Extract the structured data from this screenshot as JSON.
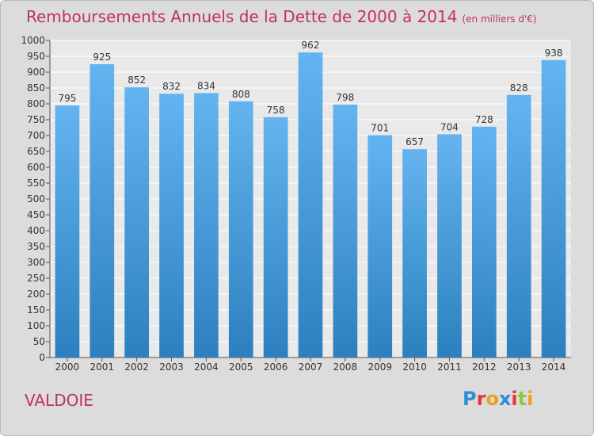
{
  "title": "Remboursements Annuels de la Dette de 2000 à 2014",
  "unit": "(en milliers d'€)",
  "place": "VALDOIE",
  "brand": "Proxiti",
  "colors": {
    "bar_top": "#63b4f0",
    "bar_bottom": "#2d80bf",
    "title": "#c0306a",
    "plot_bg": "#e9e9e9",
    "grid": "#ffffff"
  },
  "chart_data": {
    "type": "bar",
    "categories": [
      "2000",
      "2001",
      "2002",
      "2003",
      "2004",
      "2005",
      "2006",
      "2007",
      "2008",
      "2009",
      "2010",
      "2011",
      "2012",
      "2013",
      "2014"
    ],
    "values": [
      795,
      925,
      852,
      832,
      834,
      808,
      758,
      962,
      798,
      701,
      657,
      704,
      728,
      828,
      938
    ],
    "ylim": [
      0,
      1000
    ],
    "ytick_step": 50,
    "grid": true,
    "title": "Remboursements Annuels de la Dette de 2000 à 2014",
    "xlabel": "",
    "ylabel": ""
  }
}
